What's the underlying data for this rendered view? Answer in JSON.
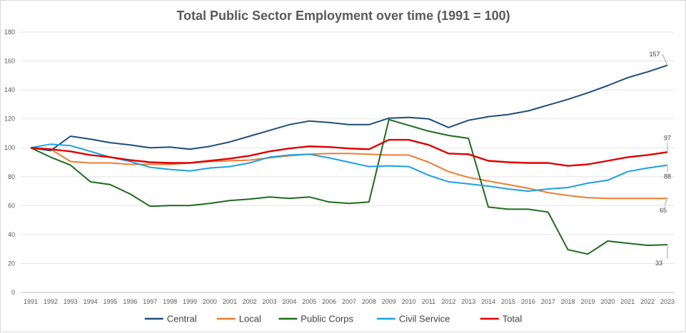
{
  "chart_data": {
    "type": "line",
    "title": "Total Public Sector Employment over time (1991 = 100)",
    "xlabel": "",
    "ylabel": "",
    "x": [
      "1991",
      "1992",
      "1993",
      "1994",
      "1995",
      "1996",
      "1997",
      "1998",
      "1999",
      "2000",
      "2001",
      "2002",
      "2003",
      "2004",
      "2005",
      "2006",
      "2007",
      "2008",
      "2009",
      "2010",
      "2011",
      "2012",
      "2013",
      "2014",
      "2015",
      "2016",
      "2017",
      "2018",
      "2019",
      "2020",
      "2021",
      "2022",
      "2023"
    ],
    "ylim": [
      0,
      180
    ],
    "yticks": [
      0,
      20,
      40,
      60,
      80,
      100,
      120,
      140,
      160,
      180
    ],
    "grid": true,
    "legend": "bottom",
    "series": [
      {
        "name": "Central",
        "color": "#1f4e79",
        "values": [
          100,
          98,
          108,
          106,
          103.5,
          102,
          100,
          100.5,
          99,
          101,
          104,
          108,
          112,
          116,
          118.5,
          117.5,
          116,
          116,
          120.5,
          121,
          120,
          114,
          119,
          121.5,
          123,
          125.5,
          129.5,
          133.5,
          138,
          143,
          148.5,
          152.5,
          157
        ],
        "end_label": "157"
      },
      {
        "name": "Local",
        "color": "#ed7d31",
        "values": [
          100,
          99,
          90.5,
          89.5,
          89.5,
          88.5,
          88.5,
          88.5,
          89.5,
          90.5,
          91,
          91.5,
          93,
          94.5,
          95.5,
          96,
          96,
          95.5,
          95,
          95,
          90,
          83.5,
          79.5,
          77,
          74.5,
          72,
          69,
          67,
          65.5,
          65,
          65,
          65,
          65
        ],
        "end_label": "65"
      },
      {
        "name": "Public Corps",
        "color": "#1e6b1e",
        "values": [
          100,
          93.5,
          88,
          76.5,
          74.5,
          68,
          59.5,
          60,
          60,
          61.5,
          63.5,
          64.5,
          66,
          65,
          66,
          62.5,
          61.5,
          62.5,
          119.5,
          115.5,
          111.5,
          108.5,
          106.5,
          59,
          57.5,
          57.5,
          55.5,
          29.5,
          26.5,
          35.5,
          34,
          32.5,
          33
        ],
        "end_label": "33"
      },
      {
        "name": "Civil Service",
        "color": "#1ba1e2",
        "values": [
          100,
          102.5,
          101.5,
          97.5,
          93.5,
          90.5,
          86.5,
          85,
          84,
          86,
          87,
          89.5,
          93.5,
          95,
          95.5,
          93,
          90,
          87,
          87.5,
          87,
          81,
          76.5,
          75,
          73.5,
          71.5,
          70,
          71.5,
          72.5,
          75.5,
          77.5,
          83.5,
          86,
          88
        ],
        "end_label": "88"
      },
      {
        "name": "Total",
        "color": "#e00000",
        "values": [
          100,
          99,
          97.5,
          95,
          93.5,
          91.5,
          90,
          89.5,
          89.5,
          91,
          92.5,
          94.5,
          97.5,
          99.5,
          101,
          100.5,
          99.5,
          99,
          105.5,
          105.5,
          102,
          96,
          95.5,
          91,
          90,
          89.5,
          89.5,
          87.5,
          88.5,
          91,
          93.5,
          95,
          97
        ],
        "end_label": "97"
      }
    ]
  }
}
